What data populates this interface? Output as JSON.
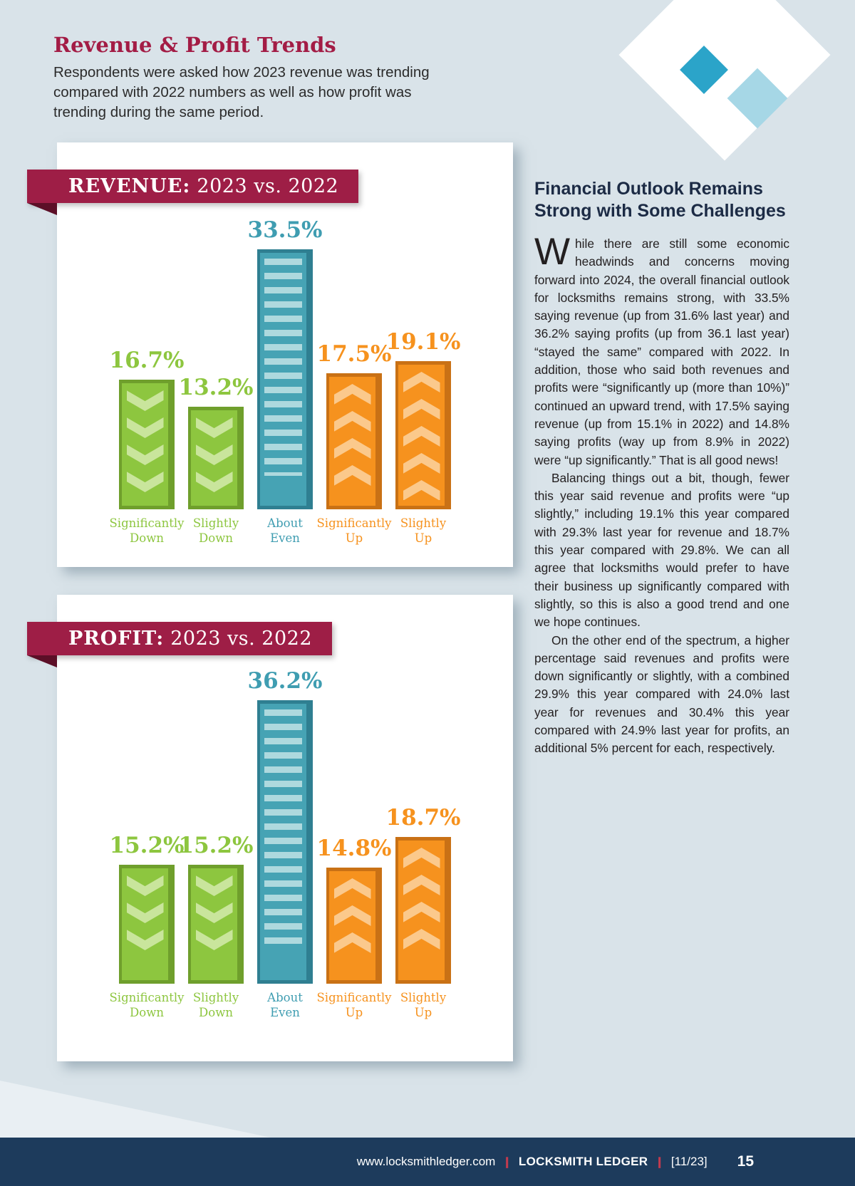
{
  "page": {
    "title": "Revenue & Profit Trends",
    "intro": "Respondents were asked how 2023 revenue was trending compared with 2022 numbers as well as how profit was trending during the same period.",
    "background_color": "#d9e3e9"
  },
  "colors": {
    "green": {
      "main": "#8dc63f",
      "dark": "#6f9f2c",
      "pattern": "#c9e59c",
      "text": "#8dc63f"
    },
    "teal": {
      "main": "#46a3b4",
      "dark": "#2f7f91",
      "pattern": "#aed9de",
      "text": "#3f9db1"
    },
    "orange": {
      "main": "#f6921e",
      "dark": "#c97115",
      "pattern": "#fbc98c",
      "text": "#f6921e"
    },
    "banner": "#9e1e46",
    "title_red": "#a31c45",
    "footer_bg": "#1d3b5c"
  },
  "charts": [
    {
      "banner_bold": "REVENUE:",
      "banner_rest": " 2023 vs. 2022",
      "bars": [
        {
          "value_label": "16.7%",
          "value": 16.7,
          "lines": [
            "Significantly",
            "Down"
          ],
          "color_key": "green",
          "pattern": "chevron-down"
        },
        {
          "value_label": "13.2%",
          "value": 13.2,
          "lines": [
            "Slightly",
            "Down"
          ],
          "color_key": "green",
          "pattern": "chevron-down"
        },
        {
          "value_label": "33.5%",
          "value": 33.5,
          "lines": [
            "About",
            "Even"
          ],
          "color_key": "teal",
          "pattern": "stripes"
        },
        {
          "value_label": "17.5%",
          "value": 17.5,
          "lines": [
            "Significantly",
            "Up"
          ],
          "color_key": "orange",
          "pattern": "chevron-up"
        },
        {
          "value_label": "19.1%",
          "value": 19.1,
          "lines": [
            "Slightly",
            "Up"
          ],
          "color_key": "orange",
          "pattern": "chevron-up"
        }
      ]
    },
    {
      "banner_bold": "PROFIT:",
      "banner_rest": " 2023 vs. 2022",
      "bars": [
        {
          "value_label": "15.2%",
          "value": 15.2,
          "lines": [
            "Significantly",
            "Down"
          ],
          "color_key": "green",
          "pattern": "chevron-down"
        },
        {
          "value_label": "15.2%",
          "value": 15.2,
          "lines": [
            "Slightly",
            "Down"
          ],
          "color_key": "green",
          "pattern": "chevron-down"
        },
        {
          "value_label": "36.2%",
          "value": 36.2,
          "lines": [
            "About",
            "Even"
          ],
          "color_key": "teal",
          "pattern": "stripes"
        },
        {
          "value_label": "14.8%",
          "value": 14.8,
          "lines": [
            "Significantly",
            "Up"
          ],
          "color_key": "orange",
          "pattern": "chevron-up"
        },
        {
          "value_label": "18.7%",
          "value": 18.7,
          "lines": [
            "Slightly",
            "Up"
          ],
          "color_key": "orange",
          "pattern": "chevron-up"
        }
      ]
    }
  ],
  "chart_data": [
    {
      "type": "bar",
      "title": "REVENUE: 2023 vs. 2022",
      "categories": [
        "Significantly Down",
        "Slightly Down",
        "About Even",
        "Significantly Up",
        "Slightly Up"
      ],
      "values": [
        16.7,
        13.2,
        33.5,
        17.5,
        19.1
      ],
      "unit": "%",
      "ylim": [
        0,
        40
      ],
      "colors": [
        "#8dc63f",
        "#8dc63f",
        "#46a3b4",
        "#f6921e",
        "#f6921e"
      ]
    },
    {
      "type": "bar",
      "title": "PROFIT: 2023 vs. 2022",
      "categories": [
        "Significantly Down",
        "Slightly Down",
        "About Even",
        "Significantly Up",
        "Slightly Up"
      ],
      "values": [
        15.2,
        15.2,
        36.2,
        14.8,
        18.7
      ],
      "unit": "%",
      "ylim": [
        0,
        40
      ],
      "colors": [
        "#8dc63f",
        "#8dc63f",
        "#46a3b4",
        "#f6921e",
        "#f6921e"
      ]
    }
  ],
  "article": {
    "heading": "Financial Outlook Remains Strong with Some Challenges",
    "dropcap": "W",
    "paragraphs": [
      "hile there are still some economic headwinds and concerns moving forward into 2024, the overall financial outlook for locksmiths remains strong, with 33.5% saying revenue (up from 31.6% last year) and 36.2% saying profits (up from 36.1 last year) “stayed the same” compared with 2022. In addition, those who said both revenues and profits were “significantly up (more than 10%)” continued an upward trend, with 17.5% saying revenue (up from 15.1% in 2022) and 14.8% saying profits (way up from 8.9% in 2022) were “up significantly.” That is all good news!",
      "Balancing things out a bit, though, fewer this year said revenue and profits were “up slightly,” including 19.1% this year compared with 29.3% last year for revenue and 18.7% this year compared with 29.8%. We can all agree that locksmiths would prefer to have their business up significantly compared with slightly, so this is also a good trend and one we hope continues.",
      "On the other end of the spectrum, a higher percentage said revenues and profits were down significantly or slightly, with a combined 29.9% this year compared with 24.0% last year for revenues and 30.4% this year compared with 24.9% last year for profits, an additional 5% percent for each, respectively."
    ]
  },
  "footer": {
    "url": "www.locksmithledger.com",
    "separator": "❙",
    "publication": "LOCKSMITH LEDGER",
    "issue": "[11/23]",
    "page_number": "15"
  }
}
